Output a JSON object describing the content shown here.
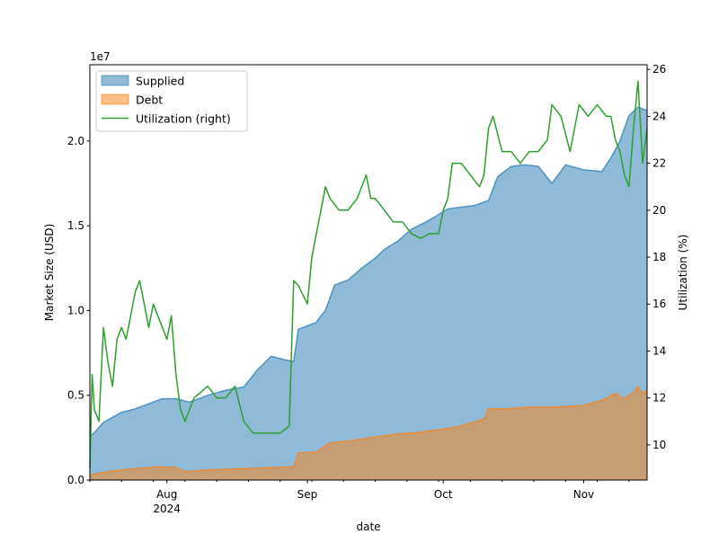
{
  "chart_data": {
    "type": "area",
    "xlabel": "date",
    "ylabel": "Market Size (USD)",
    "y2label": "Utilization (%)",
    "offset_text": "1e7",
    "year_label": "2024",
    "x_range": [
      "2024-07-15",
      "2024-11-15"
    ],
    "ylim": [
      0,
      24500000
    ],
    "y2lim": [
      8.5,
      26.2
    ],
    "yticks": [
      0,
      5000000,
      10000000,
      15000000,
      20000000
    ],
    "ytick_labels": [
      "0.0",
      "0.5",
      "1.0",
      "1.5",
      "2.0"
    ],
    "y2ticks": [
      10,
      12,
      14,
      16,
      18,
      20,
      22,
      24,
      26
    ],
    "y2tick_labels": [
      "10",
      "12",
      "14",
      "16",
      "18",
      "20",
      "22",
      "24",
      "26"
    ],
    "xticks_major": [
      "2024-08-01",
      "2024-09-01",
      "2024-10-01",
      "2024-11-01"
    ],
    "xtick_labels": [
      "Aug",
      "Sep",
      "Oct",
      "Nov"
    ],
    "legend_position": "top-left",
    "grid": false,
    "colors": {
      "supplied": "#1f77b4",
      "debt": "#ff7f0e",
      "utilization": "#2ca02c"
    },
    "series": [
      {
        "name": "Supplied",
        "type": "area",
        "x": [
          "2024-07-15",
          "2024-07-16",
          "2024-07-18",
          "2024-07-20",
          "2024-07-22",
          "2024-07-25",
          "2024-07-28",
          "2024-07-31",
          "2024-08-03",
          "2024-08-06",
          "2024-08-10",
          "2024-08-14",
          "2024-08-18",
          "2024-08-21",
          "2024-08-24",
          "2024-08-27",
          "2024-08-29",
          "2024-08-30",
          "2024-09-01",
          "2024-09-03",
          "2024-09-04",
          "2024-09-05",
          "2024-09-07",
          "2024-09-10",
          "2024-09-13",
          "2024-09-16",
          "2024-09-18",
          "2024-09-21",
          "2024-09-24",
          "2024-09-27",
          "2024-09-29",
          "2024-10-02",
          "2024-10-05",
          "2024-10-08",
          "2024-10-11",
          "2024-10-13",
          "2024-10-16",
          "2024-10-19",
          "2024-10-22",
          "2024-10-25",
          "2024-10-28",
          "2024-11-01",
          "2024-11-05",
          "2024-11-07",
          "2024-11-09",
          "2024-11-11",
          "2024-11-13",
          "2024-11-15"
        ],
        "y": [
          2600000,
          2800000,
          3400000,
          3700000,
          4000000,
          4200000,
          4500000,
          4800000,
          4800000,
          4600000,
          5000000,
          5300000,
          5500000,
          6500000,
          7300000,
          7100000,
          7000000,
          8900000,
          9100000,
          9300000,
          9700000,
          10000000,
          11500000,
          11800000,
          12500000,
          13100000,
          13600000,
          14100000,
          14800000,
          15200000,
          15500000,
          16000000,
          16100000,
          16200000,
          16500000,
          17900000,
          18500000,
          18600000,
          18500000,
          17500000,
          18600000,
          18300000,
          18200000,
          19000000,
          20000000,
          21500000,
          22000000,
          21800000
        ]
      },
      {
        "name": "Debt",
        "type": "area",
        "x": [
          "2024-07-15",
          "2024-07-18",
          "2024-07-22",
          "2024-07-26",
          "2024-07-30",
          "2024-08-03",
          "2024-08-05",
          "2024-08-10",
          "2024-08-15",
          "2024-08-20",
          "2024-08-25",
          "2024-08-29",
          "2024-08-30",
          "2024-09-03",
          "2024-09-06",
          "2024-09-10",
          "2024-09-15",
          "2024-09-20",
          "2024-09-25",
          "2024-10-01",
          "2024-10-05",
          "2024-10-10",
          "2024-10-11",
          "2024-10-15",
          "2024-10-20",
          "2024-10-25",
          "2024-11-01",
          "2024-11-05",
          "2024-11-08",
          "2024-11-10",
          "2024-11-12",
          "2024-11-13",
          "2024-11-14",
          "2024-11-15"
        ],
        "y": [
          300000,
          450000,
          600000,
          700000,
          780000,
          760000,
          500000,
          600000,
          650000,
          700000,
          750000,
          780000,
          1600000,
          1650000,
          2200000,
          2300000,
          2500000,
          2700000,
          2800000,
          3000000,
          3200000,
          3600000,
          4200000,
          4200000,
          4300000,
          4300000,
          4400000,
          4700000,
          5100000,
          4800000,
          5200000,
          5500000,
          5100000,
          5300000
        ]
      },
      {
        "name": "Utilization (right)",
        "type": "line",
        "axis": "right",
        "x": [
          "2024-07-15",
          "2024-07-15.5",
          "2024-07-16",
          "2024-07-17",
          "2024-07-18",
          "2024-07-19",
          "2024-07-20",
          "2024-07-21",
          "2024-07-22",
          "2024-07-23",
          "2024-07-24",
          "2024-07-25",
          "2024-07-26",
          "2024-07-27",
          "2024-07-28",
          "2024-07-29",
          "2024-07-30",
          "2024-07-31",
          "2024-08-01",
          "2024-08-02",
          "2024-08-03",
          "2024-08-04",
          "2024-08-05",
          "2024-08-06",
          "2024-08-07",
          "2024-08-10",
          "2024-08-12",
          "2024-08-14",
          "2024-08-16",
          "2024-08-18",
          "2024-08-20",
          "2024-08-21",
          "2024-08-22",
          "2024-08-24",
          "2024-08-26",
          "2024-08-28",
          "2024-08-29",
          "2024-08-30",
          "2024-09-01",
          "2024-09-02",
          "2024-09-03",
          "2024-09-04",
          "2024-09-05",
          "2024-09-06",
          "2024-09-08",
          "2024-09-10",
          "2024-09-12",
          "2024-09-14",
          "2024-09-15",
          "2024-09-16",
          "2024-09-18",
          "2024-09-20",
          "2024-09-22",
          "2024-09-24",
          "2024-09-26",
          "2024-09-28",
          "2024-09-30",
          "2024-10-01",
          "2024-10-02",
          "2024-10-03",
          "2024-10-05",
          "2024-10-07",
          "2024-10-09",
          "2024-10-10",
          "2024-10-11",
          "2024-10-12",
          "2024-10-14",
          "2024-10-16",
          "2024-10-18",
          "2024-10-20",
          "2024-10-22",
          "2024-10-24",
          "2024-10-25",
          "2024-10-27",
          "2024-10-29",
          "2024-10-31",
          "2024-11-02",
          "2024-11-04",
          "2024-11-06",
          "2024-11-07",
          "2024-11-08",
          "2024-11-09",
          "2024-11-10",
          "2024-11-11",
          "2024-11-12",
          "2024-11-13",
          "2024-11-14",
          "2024-11-15"
        ],
        "y": [
          9,
          13,
          11.5,
          11,
          15,
          13.5,
          12.5,
          14.5,
          15,
          14.5,
          15.5,
          16.5,
          17,
          16,
          15,
          16,
          15.5,
          15,
          14.5,
          15.5,
          13,
          11.5,
          11,
          11.5,
          12,
          12.5,
          12,
          12,
          12.5,
          11,
          10.5,
          10.5,
          10.5,
          10.5,
          10.5,
          10.8,
          17,
          16.8,
          16,
          18,
          19,
          20,
          21,
          20.5,
          20,
          20,
          20.5,
          21.5,
          20.5,
          20.5,
          20,
          19.5,
          19.5,
          19,
          18.8,
          19,
          19,
          20,
          20.5,
          22,
          22,
          21.5,
          21,
          21.5,
          23.5,
          24,
          22.5,
          22.5,
          22,
          22.5,
          22.5,
          23,
          24.5,
          24,
          22.5,
          24.5,
          24,
          24.5,
          24,
          24,
          23,
          22.5,
          21.5,
          21,
          23.5,
          25.5,
          22,
          23.5
        ]
      }
    ]
  }
}
